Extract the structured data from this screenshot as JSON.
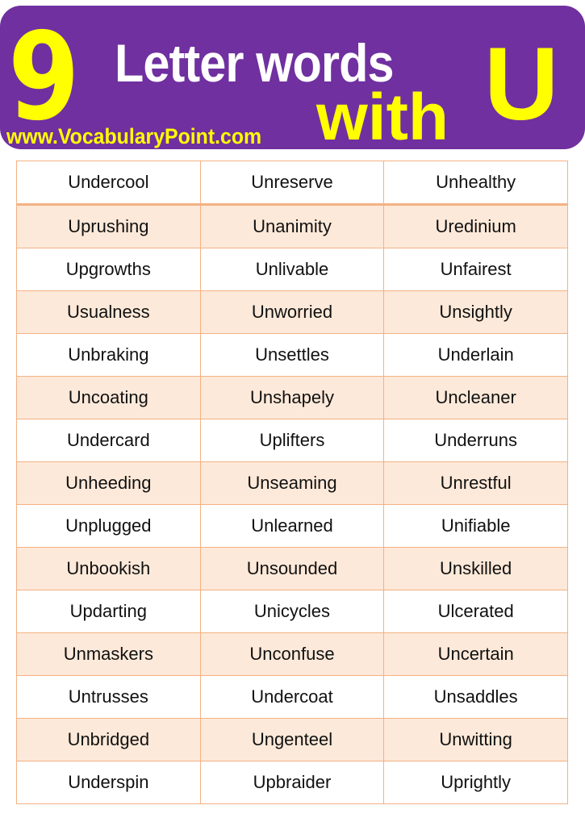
{
  "header": {
    "number": "9",
    "title": "Letter words",
    "with": "with",
    "letter": "U",
    "website": "www.VocabularyPoint.com",
    "colors": {
      "banner": "#7030a0",
      "accent": "#ffff00",
      "row_alt": "#fde9d9",
      "border": "#f4b183"
    }
  },
  "rows": [
    [
      "Undercool",
      "Unreserve",
      "Unhealthy"
    ],
    [
      "Uprushing",
      "Unanimity",
      "Uredinium"
    ],
    [
      "Upgrowths",
      "Unlivable",
      "Unfairest"
    ],
    [
      "Usualness",
      "Unworried",
      "Unsightly"
    ],
    [
      "Unbraking",
      "Unsettles",
      "Underlain"
    ],
    [
      "Uncoating",
      "Unshapely",
      "Uncleaner"
    ],
    [
      "Undercard",
      "Uplifters",
      "Underruns"
    ],
    [
      "Unheeding",
      "Unseaming",
      "Unrestful"
    ],
    [
      "Unplugged",
      "Unlearned",
      "Unifiable"
    ],
    [
      "Unbookish",
      "Unsounded",
      "Unskilled"
    ],
    [
      "Updarting",
      "Unicycles",
      "Ulcerated"
    ],
    [
      "Unmaskers",
      "Unconfuse",
      "Uncertain"
    ],
    [
      "Untrusses",
      "Undercoat",
      "Unsaddles"
    ],
    [
      "Unbridged",
      "Ungenteel",
      "Unwitting"
    ],
    [
      "Underspin",
      "Upbraider",
      "Uprightly"
    ]
  ]
}
